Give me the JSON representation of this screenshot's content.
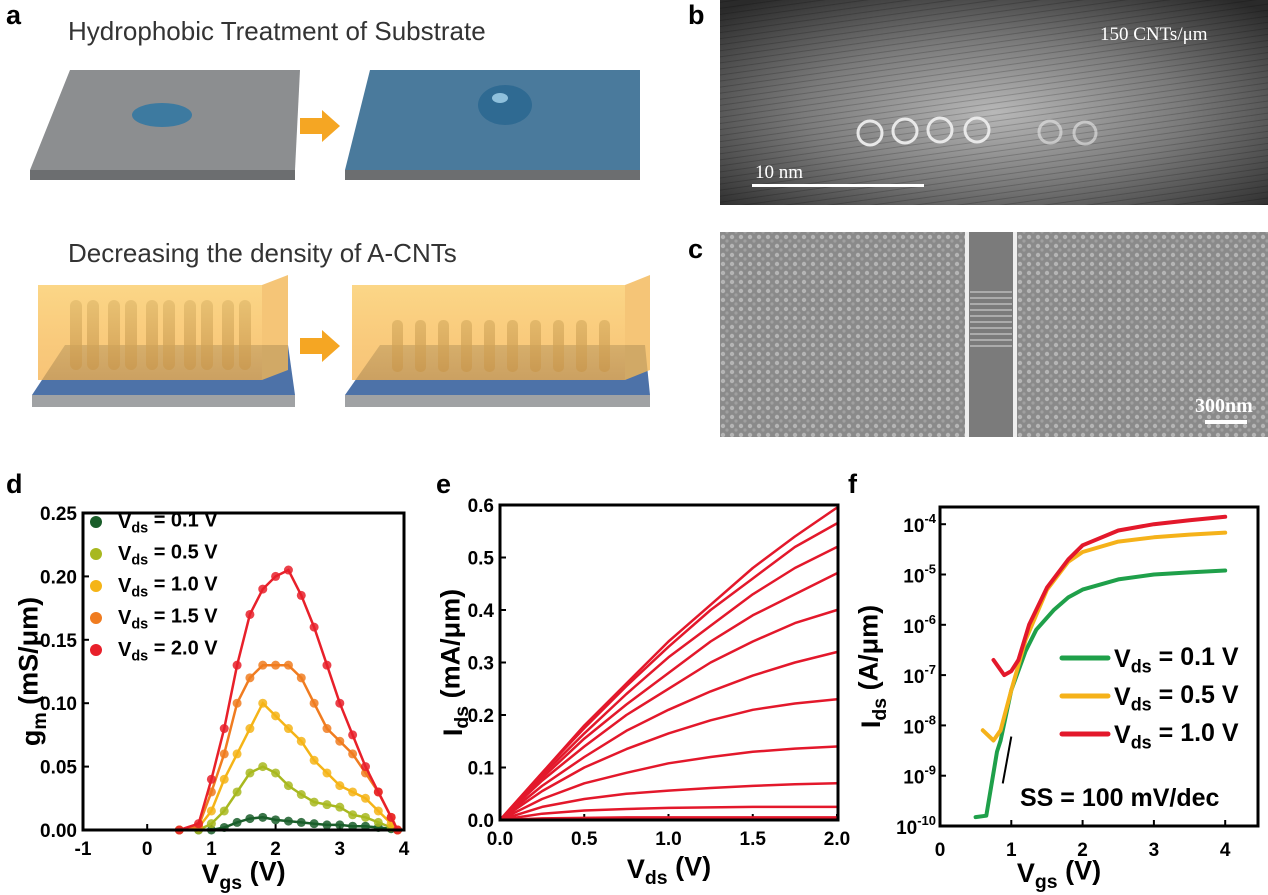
{
  "panel_labels": [
    "a",
    "b",
    "c",
    "d",
    "e",
    "f"
  ],
  "panel_a": {
    "title_top": "Hydrophobic Treatment of Substrate",
    "title_bottom": "Decreasing the density of A-CNTs",
    "colors": {
      "substrate_grey": "#8a8c8e",
      "substrate_blue": "#3f6f94",
      "electrode_yellow": "#f7c25a",
      "arrow_orange": "#f5a623",
      "cnt_dark": "#3a3f4a"
    }
  },
  "panel_b": {
    "annotation": "150 CNTs/μm",
    "scale_bar": "10 nm"
  },
  "panel_c": {
    "scale_bar": "300nm"
  },
  "chart_data": [
    {
      "panel": "d",
      "type": "scatter",
      "xlabel": {
        "main": "V",
        "sub": "gs",
        "unit": " (V)"
      },
      "ylabel": {
        "main": "g",
        "sub": "m",
        "unit": " (mS/μm)"
      },
      "xlim": [
        -1,
        4
      ],
      "ylim": [
        0,
        0.25
      ],
      "xticks": [
        "-1",
        "0",
        "1",
        "2",
        "3",
        "4"
      ],
      "yticks": [
        "0.00",
        "0.05",
        "0.10",
        "0.15",
        "0.20",
        "0.25"
      ],
      "legend_placement": "top-left",
      "x": [
        0.5,
        0.8,
        1.0,
        1.2,
        1.4,
        1.6,
        1.8,
        2.0,
        2.2,
        2.4,
        2.6,
        2.8,
        3.0,
        3.2,
        3.4,
        3.6,
        3.8,
        3.9
      ],
      "series": [
        {
          "name": {
            "main": "V",
            "sub": "ds",
            "rest": " = 0.1 V"
          },
          "color": "#1a5e2a",
          "values": [
            0,
            0,
            0,
            0.002,
            0.006,
            0.009,
            0.01,
            0.008,
            0.007,
            0.006,
            0.005,
            0.004,
            0.004,
            0.003,
            0.003,
            0.002,
            0.001,
            0
          ]
        },
        {
          "name": {
            "main": "V",
            "sub": "ds",
            "rest": " = 0.5 V"
          },
          "color": "#a8b820",
          "values": [
            0,
            0,
            0.005,
            0.015,
            0.03,
            0.045,
            0.05,
            0.045,
            0.035,
            0.028,
            0.022,
            0.02,
            0.018,
            0.012,
            0.01,
            0.006,
            0.002,
            0
          ]
        },
        {
          "name": {
            "main": "V",
            "sub": "ds",
            "rest": " = 1.0 V"
          },
          "color": "#f5b417",
          "values": [
            0,
            0.002,
            0.015,
            0.04,
            0.06,
            0.08,
            0.1,
            0.09,
            0.08,
            0.07,
            0.055,
            0.045,
            0.035,
            0.03,
            0.025,
            0.015,
            0.005,
            0
          ]
        },
        {
          "name": {
            "main": "V",
            "sub": "ds",
            "rest": " = 1.5 V"
          },
          "color": "#f07c20",
          "values": [
            0,
            0.003,
            0.03,
            0.06,
            0.1,
            0.12,
            0.13,
            0.13,
            0.13,
            0.12,
            0.1,
            0.08,
            0.07,
            0.06,
            0.045,
            0.03,
            0.01,
            0
          ]
        },
        {
          "name": {
            "main": "V",
            "sub": "ds",
            "rest": " = 2.0 V"
          },
          "color": "#e8202a",
          "values": [
            0,
            0.005,
            0.04,
            0.08,
            0.13,
            0.17,
            0.19,
            0.2,
            0.205,
            0.185,
            0.16,
            0.13,
            0.1,
            0.075,
            0.05,
            0.03,
            0.01,
            0
          ]
        }
      ]
    },
    {
      "panel": "e",
      "type": "line",
      "xlabel": {
        "main": "V",
        "sub": "ds",
        "unit": " (V)"
      },
      "ylabel": {
        "main": "I",
        "sub": "ds",
        "unit": " (mA/μm)"
      },
      "xlim": [
        0,
        2.0
      ],
      "ylim": [
        0,
        0.6
      ],
      "xticks": [
        "0.0",
        "0.5",
        "1.0",
        "1.5",
        "2.0"
      ],
      "yticks": [
        "0.0",
        "0.1",
        "0.2",
        "0.3",
        "0.4",
        "0.5",
        "0.6"
      ],
      "color": "#e3182b",
      "x": [
        0,
        0.25,
        0.5,
        0.75,
        1.0,
        1.25,
        1.5,
        1.75,
        2.0
      ],
      "series": [
        {
          "values": [
            0,
            0.09,
            0.18,
            0.26,
            0.34,
            0.41,
            0.48,
            0.54,
            0.595
          ]
        },
        {
          "values": [
            0,
            0.09,
            0.175,
            0.255,
            0.33,
            0.4,
            0.46,
            0.52,
            0.565
          ]
        },
        {
          "values": [
            0,
            0.085,
            0.165,
            0.24,
            0.31,
            0.37,
            0.43,
            0.48,
            0.52
          ]
        },
        {
          "values": [
            0,
            0.08,
            0.155,
            0.22,
            0.28,
            0.34,
            0.39,
            0.43,
            0.47
          ]
        },
        {
          "values": [
            0,
            0.075,
            0.14,
            0.2,
            0.25,
            0.3,
            0.34,
            0.375,
            0.4
          ]
        },
        {
          "values": [
            0,
            0.065,
            0.12,
            0.17,
            0.21,
            0.245,
            0.275,
            0.3,
            0.32
          ]
        },
        {
          "values": [
            0,
            0.055,
            0.1,
            0.135,
            0.165,
            0.19,
            0.21,
            0.222,
            0.23
          ]
        },
        {
          "values": [
            0,
            0.04,
            0.07,
            0.09,
            0.108,
            0.12,
            0.13,
            0.136,
            0.14
          ]
        },
        {
          "values": [
            0,
            0.025,
            0.04,
            0.05,
            0.056,
            0.061,
            0.065,
            0.068,
            0.07
          ]
        },
        {
          "values": [
            0,
            0.012,
            0.018,
            0.021,
            0.023,
            0.024,
            0.025,
            0.025,
            0.025
          ]
        },
        {
          "values": [
            0,
            0.003,
            0.004,
            0.005,
            0.005,
            0.005,
            0.005,
            0.005,
            0.005
          ]
        }
      ]
    },
    {
      "panel": "f",
      "type": "line",
      "yscale": "log",
      "xlabel": {
        "main": "V",
        "sub": "gs",
        "unit": " (V)"
      },
      "ylabel": {
        "main": "I",
        "sub": "ds",
        "unit": " (A/μm)"
      },
      "xlim": [
        0,
        4.5
      ],
      "ylim": [
        1e-10,
        0.001
      ],
      "xticks": [
        "0",
        "1",
        "2",
        "3",
        "4"
      ],
      "yticks": [
        {
          "base": "10",
          "exp": "-10"
        },
        {
          "base": "10",
          "exp": "-9"
        },
        {
          "base": "10",
          "exp": "-8"
        },
        {
          "base": "10",
          "exp": "-7"
        },
        {
          "base": "10",
          "exp": "-6"
        },
        {
          "base": "10",
          "exp": "-5"
        },
        {
          "base": "10",
          "exp": "-4"
        }
      ],
      "legend_placement": "center-right",
      "annotation": "SS = 100 mV/dec",
      "ss_line": {
        "x": [
          0.88,
          1.0
        ],
        "y": [
          7e-10,
          6e-09
        ]
      },
      "series": [
        {
          "name": {
            "main": "V",
            "sub": "ds",
            "rest": " = 0.1 V"
          },
          "color": "#1fa04a",
          "x": [
            0.5,
            0.65,
            0.8,
            0.85,
            1.0,
            1.2,
            1.35,
            1.6,
            1.8,
            2.0,
            2.5,
            3.0,
            3.5,
            4.0
          ],
          "values": [
            1.5e-10,
            1.6e-10,
            3e-09,
            5e-09,
            5e-08,
            3e-07,
            8e-07,
            2e-06,
            3.5e-06,
            5e-06,
            8e-06,
            1e-05,
            1.1e-05,
            1.2e-05
          ]
        },
        {
          "name": {
            "main": "V",
            "sub": "ds",
            "rest": " = 0.5 V"
          },
          "color": "#f5b21a",
          "x": [
            0.6,
            0.75,
            0.85,
            1.0,
            1.2,
            1.5,
            1.8,
            2.0,
            2.5,
            3.0,
            3.5,
            4.0
          ],
          "values": [
            8e-09,
            5e-09,
            8e-09,
            5e-08,
            5e-07,
            5e-06,
            1.8e-05,
            2.8e-05,
            4.5e-05,
            5.5e-05,
            6.2e-05,
            6.8e-05
          ]
        },
        {
          "name": {
            "main": "V",
            "sub": "ds",
            "rest": " = 1.0 V"
          },
          "color": "#e3182b",
          "x": [
            0.75,
            0.9,
            1.0,
            1.1,
            1.25,
            1.5,
            1.8,
            2.0,
            2.5,
            3.0,
            3.5,
            4.0
          ],
          "values": [
            2e-07,
            1e-07,
            1.2e-07,
            2e-07,
            1e-06,
            5.5e-06,
            2e-05,
            3.8e-05,
            7.5e-05,
            0.0001,
            0.00012,
            0.00014
          ]
        }
      ]
    }
  ]
}
